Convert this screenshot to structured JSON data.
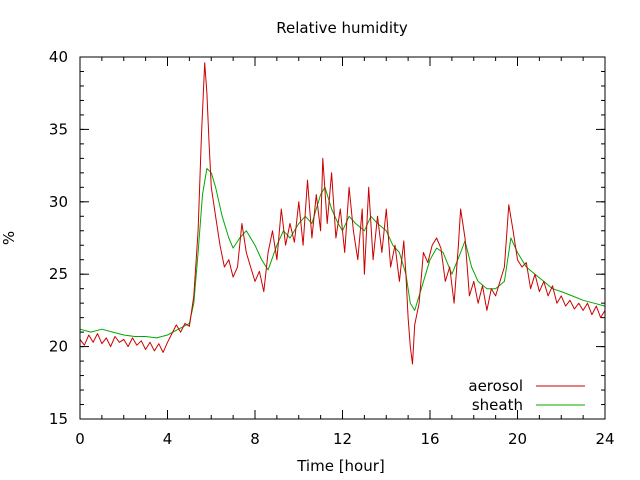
{
  "chart_data": {
    "type": "line",
    "title": "Relative humidity",
    "xlabel": "Time [hour]",
    "ylabel": "%",
    "xlim": [
      0,
      24
    ],
    "ylim": [
      15,
      40
    ],
    "x_ticks": [
      0,
      4,
      8,
      12,
      16,
      20,
      24
    ],
    "y_ticks": [
      15,
      20,
      25,
      30,
      35,
      40
    ],
    "x_minor_step": 1,
    "y_minor_step": 1,
    "grid": false,
    "legend_position": "bottom-right",
    "series": [
      {
        "name": "aerosol",
        "color": "#cc0000",
        "points": [
          [
            0,
            20.5
          ],
          [
            0.2,
            20.1
          ],
          [
            0.4,
            20.8
          ],
          [
            0.6,
            20.3
          ],
          [
            0.8,
            20.9
          ],
          [
            1.0,
            20.2
          ],
          [
            1.2,
            20.6
          ],
          [
            1.4,
            20.0
          ],
          [
            1.6,
            20.7
          ],
          [
            1.8,
            20.3
          ],
          [
            2.0,
            20.5
          ],
          [
            2.2,
            20.0
          ],
          [
            2.4,
            20.6
          ],
          [
            2.6,
            20.1
          ],
          [
            2.8,
            20.4
          ],
          [
            3.0,
            19.8
          ],
          [
            3.2,
            20.3
          ],
          [
            3.4,
            19.7
          ],
          [
            3.6,
            20.2
          ],
          [
            3.8,
            19.6
          ],
          [
            4.0,
            20.3
          ],
          [
            4.2,
            20.9
          ],
          [
            4.4,
            21.5
          ],
          [
            4.6,
            21.0
          ],
          [
            4.8,
            21.6
          ],
          [
            5.0,
            21.4
          ],
          [
            5.2,
            23.5
          ],
          [
            5.4,
            28.0
          ],
          [
            5.55,
            34.5
          ],
          [
            5.7,
            39.6
          ],
          [
            5.8,
            37.5
          ],
          [
            5.9,
            34.0
          ],
          [
            6.0,
            31.0
          ],
          [
            6.2,
            29.0
          ],
          [
            6.4,
            27.0
          ],
          [
            6.6,
            25.5
          ],
          [
            6.8,
            26.0
          ],
          [
            7.0,
            24.8
          ],
          [
            7.2,
            25.5
          ],
          [
            7.4,
            28.5
          ],
          [
            7.6,
            26.5
          ],
          [
            7.8,
            25.5
          ],
          [
            8.0,
            24.5
          ],
          [
            8.2,
            25.2
          ],
          [
            8.4,
            23.8
          ],
          [
            8.6,
            26.5
          ],
          [
            8.8,
            28.0
          ],
          [
            9.0,
            26.0
          ],
          [
            9.2,
            29.5
          ],
          [
            9.4,
            27.0
          ],
          [
            9.6,
            28.5
          ],
          [
            9.8,
            27.2
          ],
          [
            10.0,
            30.0
          ],
          [
            10.2,
            27.0
          ],
          [
            10.4,
            31.5
          ],
          [
            10.6,
            27.5
          ],
          [
            10.8,
            30.5
          ],
          [
            11.0,
            28.0
          ],
          [
            11.1,
            33.0
          ],
          [
            11.3,
            28.5
          ],
          [
            11.5,
            32.0
          ],
          [
            11.7,
            27.5
          ],
          [
            11.9,
            29.5
          ],
          [
            12.1,
            26.5
          ],
          [
            12.3,
            31.0
          ],
          [
            12.5,
            28.0
          ],
          [
            12.7,
            26.0
          ],
          [
            12.9,
            29.5
          ],
          [
            13.0,
            25.0
          ],
          [
            13.2,
            31.0
          ],
          [
            13.4,
            26.0
          ],
          [
            13.6,
            29.0
          ],
          [
            13.8,
            26.5
          ],
          [
            14.0,
            29.5
          ],
          [
            14.2,
            25.5
          ],
          [
            14.4,
            27.0
          ],
          [
            14.6,
            24.5
          ],
          [
            14.8,
            27.3
          ],
          [
            14.9,
            25.0
          ],
          [
            15.0,
            22.0
          ],
          [
            15.1,
            20.0
          ],
          [
            15.2,
            18.8
          ],
          [
            15.3,
            21.5
          ],
          [
            15.5,
            23.0
          ],
          [
            15.7,
            26.5
          ],
          [
            15.9,
            25.8
          ],
          [
            16.1,
            27.0
          ],
          [
            16.3,
            27.5
          ],
          [
            16.5,
            26.8
          ],
          [
            16.7,
            24.5
          ],
          [
            16.9,
            25.5
          ],
          [
            17.1,
            23.0
          ],
          [
            17.3,
            27.0
          ],
          [
            17.4,
            29.5
          ],
          [
            17.6,
            27.5
          ],
          [
            17.8,
            23.5
          ],
          [
            18.0,
            24.5
          ],
          [
            18.2,
            23.0
          ],
          [
            18.4,
            24.2
          ],
          [
            18.6,
            22.5
          ],
          [
            18.8,
            24.0
          ],
          [
            19.0,
            23.5
          ],
          [
            19.2,
            24.5
          ],
          [
            19.4,
            25.5
          ],
          [
            19.6,
            29.8
          ],
          [
            19.8,
            28.0
          ],
          [
            20.0,
            26.0
          ],
          [
            20.2,
            25.5
          ],
          [
            20.4,
            25.8
          ],
          [
            20.6,
            24.0
          ],
          [
            20.8,
            25.0
          ],
          [
            21.0,
            23.8
          ],
          [
            21.2,
            24.5
          ],
          [
            21.4,
            23.5
          ],
          [
            21.6,
            24.2
          ],
          [
            21.8,
            23.0
          ],
          [
            22.0,
            23.5
          ],
          [
            22.2,
            22.8
          ],
          [
            22.4,
            23.2
          ],
          [
            22.6,
            22.6
          ],
          [
            22.8,
            23.0
          ],
          [
            23.0,
            22.5
          ],
          [
            23.2,
            23.0
          ],
          [
            23.4,
            22.2
          ],
          [
            23.6,
            22.8
          ],
          [
            23.8,
            22.0
          ],
          [
            24.0,
            22.5
          ]
        ]
      },
      {
        "name": "sheath",
        "color": "#00aa00",
        "points": [
          [
            0,
            21.2
          ],
          [
            0.5,
            21.0
          ],
          [
            1.0,
            21.2
          ],
          [
            1.5,
            21.0
          ],
          [
            2.0,
            20.8
          ],
          [
            2.5,
            20.7
          ],
          [
            3.0,
            20.7
          ],
          [
            3.5,
            20.6
          ],
          [
            4.0,
            20.8
          ],
          [
            4.5,
            21.2
          ],
          [
            5.0,
            21.6
          ],
          [
            5.2,
            23.0
          ],
          [
            5.4,
            26.5
          ],
          [
            5.6,
            30.5
          ],
          [
            5.8,
            32.3
          ],
          [
            6.0,
            32.0
          ],
          [
            6.2,
            31.0
          ],
          [
            6.5,
            29.0
          ],
          [
            6.8,
            27.5
          ],
          [
            7.0,
            26.8
          ],
          [
            7.3,
            27.5
          ],
          [
            7.6,
            28.0
          ],
          [
            8.0,
            27.0
          ],
          [
            8.3,
            26.0
          ],
          [
            8.6,
            25.3
          ],
          [
            9.0,
            27.0
          ],
          [
            9.3,
            28.0
          ],
          [
            9.6,
            27.5
          ],
          [
            10.0,
            28.5
          ],
          [
            10.3,
            29.0
          ],
          [
            10.6,
            28.5
          ],
          [
            11.0,
            30.5
          ],
          [
            11.2,
            31.0
          ],
          [
            11.5,
            29.5
          ],
          [
            11.8,
            28.5
          ],
          [
            12.0,
            28.0
          ],
          [
            12.3,
            29.0
          ],
          [
            12.6,
            28.5
          ],
          [
            13.0,
            28.0
          ],
          [
            13.3,
            29.0
          ],
          [
            13.6,
            28.5
          ],
          [
            14.0,
            28.0
          ],
          [
            14.3,
            27.0
          ],
          [
            14.6,
            26.5
          ],
          [
            14.9,
            25.0
          ],
          [
            15.1,
            23.0
          ],
          [
            15.3,
            22.5
          ],
          [
            15.6,
            24.0
          ],
          [
            16.0,
            26.0
          ],
          [
            16.3,
            26.8
          ],
          [
            16.6,
            26.5
          ],
          [
            17.0,
            25.0
          ],
          [
            17.4,
            26.5
          ],
          [
            17.6,
            27.3
          ],
          [
            17.9,
            25.5
          ],
          [
            18.2,
            24.5
          ],
          [
            18.6,
            24.0
          ],
          [
            19.0,
            24.0
          ],
          [
            19.4,
            24.5
          ],
          [
            19.7,
            27.5
          ],
          [
            20.0,
            26.5
          ],
          [
            20.4,
            25.5
          ],
          [
            20.8,
            25.0
          ],
          [
            21.2,
            24.5
          ],
          [
            21.6,
            24.0
          ],
          [
            22.0,
            23.8
          ],
          [
            22.5,
            23.5
          ],
          [
            23.0,
            23.2
          ],
          [
            23.5,
            23.0
          ],
          [
            24.0,
            22.8
          ]
        ]
      }
    ]
  }
}
